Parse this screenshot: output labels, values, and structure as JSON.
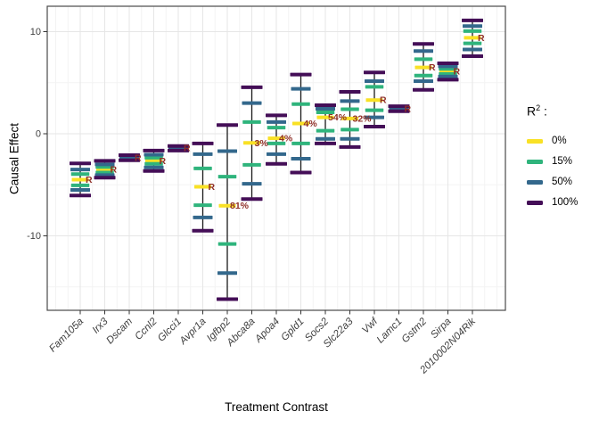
{
  "chart_data": {
    "type": "pointrange",
    "title": "",
    "xlabel": "Treatment Contrast",
    "ylabel": "Causal Effect",
    "ylim": [
      -17.3,
      12.5
    ],
    "yticks_major": [
      10,
      0,
      -10
    ],
    "yticks_minor": [
      5,
      -5,
      -15
    ],
    "grid": true,
    "legend_position": "right",
    "legend": {
      "title_base": "R",
      "title_sup": "2",
      "title_suffix": " :",
      "items": [
        {
          "label": "0%",
          "color": "#F9E125"
        },
        {
          "label": "15%",
          "color": "#2FB47C"
        },
        {
          "label": "50%",
          "color": "#33688C"
        },
        {
          "label": "100%",
          "color": "#440E57"
        }
      ]
    },
    "r2_levels": [
      "0%",
      "15%",
      "50%",
      "100%"
    ],
    "level_colors": {
      "0%": "#F9E125",
      "15%": "#2FB47C",
      "50%": "#33688C",
      "100%": "#440E57"
    },
    "annotation_color": "#8F2F28",
    "series": [
      {
        "name": "Fam105a",
        "annotation": "R",
        "intervals": {
          "0%": [
            -4.5
          ],
          "15%": [
            -3.95,
            -5.05
          ],
          "50%": [
            -3.5,
            -5.5
          ],
          "100%": [
            -2.9,
            -6.05
          ]
        }
      },
      {
        "name": "Irx3",
        "annotation": "R",
        "intervals": {
          "0%": [
            -3.5
          ],
          "15%": [
            -3.25,
            -3.8
          ],
          "50%": [
            -3.0,
            -4.05
          ],
          "100%": [
            -2.65,
            -4.3
          ]
        }
      },
      {
        "name": "Dscam",
        "annotation": "R",
        "intervals": {
          "0%": [
            -2.35
          ],
          "15%": [
            -2.3,
            -2.4
          ],
          "50%": [
            -2.2,
            -2.5
          ],
          "100%": [
            -2.1,
            -2.6
          ]
        }
      },
      {
        "name": "Ccnl2",
        "annotation": "R",
        "intervals": {
          "0%": [
            -2.65
          ],
          "15%": [
            -2.35,
            -2.95
          ],
          "50%": [
            -2.05,
            -3.3
          ],
          "100%": [
            -1.65,
            -3.65
          ]
        }
      },
      {
        "name": "Glcci1",
        "annotation": "R",
        "intervals": {
          "0%": [
            -1.4
          ],
          "15%": [
            -1.35,
            -1.45
          ],
          "50%": [
            -1.3,
            -1.55
          ],
          "100%": [
            -1.2,
            -1.65
          ]
        }
      },
      {
        "name": "Avpr1a",
        "annotation": "R",
        "intervals": {
          "0%": [
            -5.2
          ],
          "15%": [
            -3.4,
            -7.0
          ],
          "50%": [
            -2.0,
            -8.2
          ],
          "100%": [
            -0.95,
            -9.5
          ]
        }
      },
      {
        "name": "Igfbp2",
        "annotation": "81%",
        "intervals": {
          "0%": [
            -7.05
          ],
          "15%": [
            -4.2,
            -10.8
          ],
          "50%": [
            -1.7,
            -13.65
          ],
          "100%": [
            0.85,
            -16.2
          ]
        }
      },
      {
        "name": "Abca8a",
        "annotation": "3%",
        "intervals": {
          "0%": [
            -0.9
          ],
          "15%": [
            1.15,
            -3.05
          ],
          "50%": [
            3.0,
            -4.9
          ],
          "100%": [
            4.55,
            -6.4
          ]
        }
      },
      {
        "name": "Apoa4",
        "annotation": "4%",
        "intervals": {
          "0%": [
            -0.45
          ],
          "15%": [
            0.6,
            -0.95
          ],
          "50%": [
            1.15,
            -2.0
          ],
          "100%": [
            1.8,
            -2.95
          ]
        }
      },
      {
        "name": "Gpld1",
        "annotation": "4%",
        "intervals": {
          "0%": [
            1.0
          ],
          "15%": [
            2.9,
            -0.95
          ],
          "50%": [
            4.4,
            -2.45
          ],
          "100%": [
            5.8,
            -3.8
          ]
        }
      },
      {
        "name": "Socs2",
        "annotation": "54%",
        "intervals": {
          "0%": [
            1.6
          ],
          "15%": [
            2.1,
            0.3
          ],
          "50%": [
            2.45,
            -0.5
          ],
          "100%": [
            2.8,
            -0.95
          ]
        }
      },
      {
        "name": "Slc22a3",
        "annotation": "32%",
        "intervals": {
          "0%": [
            1.5
          ],
          "15%": [
            2.4,
            0.4
          ],
          "50%": [
            3.2,
            -0.5
          ],
          "100%": [
            4.1,
            -1.3
          ]
        }
      },
      {
        "name": "Vwf",
        "annotation": "R",
        "intervals": {
          "0%": [
            3.3
          ],
          "15%": [
            4.6,
            2.3
          ],
          "50%": [
            5.15,
            1.6
          ],
          "100%": [
            6.0,
            0.7
          ]
        }
      },
      {
        "name": "Lamc1",
        "annotation": "R",
        "intervals": {
          "0%": [
            2.45
          ],
          "15%": [
            2.5,
            2.4
          ],
          "50%": [
            2.6,
            2.3
          ],
          "100%": [
            2.7,
            2.2
          ]
        }
      },
      {
        "name": "Gstm2",
        "annotation": "R",
        "intervals": {
          "0%": [
            6.5
          ],
          "15%": [
            7.3,
            5.7
          ],
          "50%": [
            8.1,
            5.15
          ],
          "100%": [
            8.8,
            4.3
          ]
        }
      },
      {
        "name": "Sirpa",
        "annotation": "R",
        "intervals": {
          "0%": [
            6.1
          ],
          "15%": [
            6.35,
            5.85
          ],
          "50%": [
            6.6,
            5.6
          ],
          "100%": [
            6.9,
            5.3
          ]
        }
      },
      {
        "name": "2010002N04Rik",
        "annotation": "R",
        "intervals": {
          "0%": [
            9.4
          ],
          "15%": [
            10.05,
            8.85
          ],
          "50%": [
            10.55,
            8.25
          ],
          "100%": [
            11.1,
            7.6
          ]
        }
      }
    ]
  }
}
